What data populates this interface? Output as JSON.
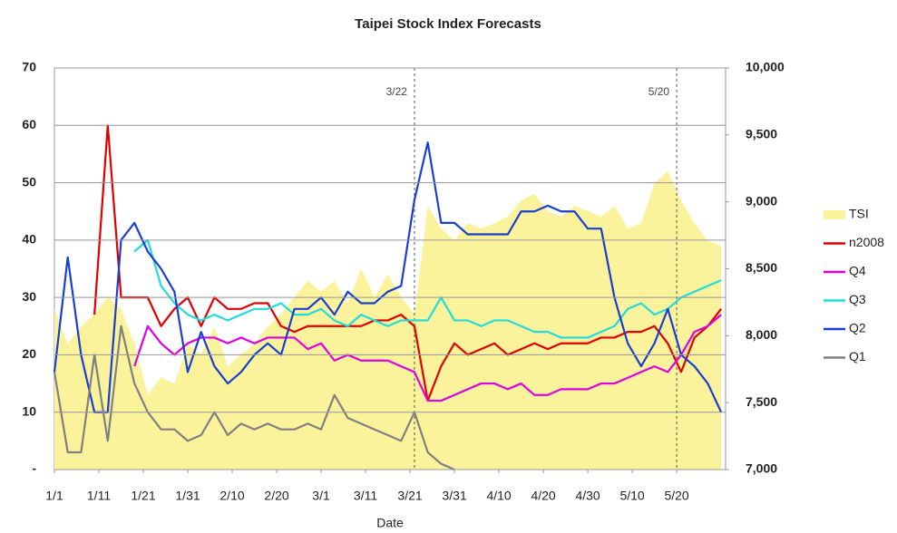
{
  "chart_data": {
    "type": "line",
    "title": "Taipei Stock Index Forecasts",
    "x_label": "Date",
    "x": [
      0,
      3,
      6,
      9,
      12,
      15,
      18,
      21,
      24,
      27,
      30,
      33,
      36,
      39,
      42,
      45,
      48,
      51,
      54,
      57,
      60,
      63,
      66,
      69,
      72,
      75,
      78,
      81,
      84,
      87,
      90,
      93,
      96,
      99,
      102,
      105,
      108,
      111,
      114,
      117,
      120,
      123,
      126,
      129,
      132,
      135,
      138,
      141,
      144,
      147,
      150
    ],
    "xlim": [
      0,
      151
    ],
    "xticks": [
      {
        "value": 0,
        "label": "1/1"
      },
      {
        "value": 10,
        "label": "1/11"
      },
      {
        "value": 20,
        "label": "1/21"
      },
      {
        "value": 30,
        "label": "1/31"
      },
      {
        "value": 40,
        "label": "2/10"
      },
      {
        "value": 50,
        "label": "2/20"
      },
      {
        "value": 60,
        "label": "3/1"
      },
      {
        "value": 70,
        "label": "3/11"
      },
      {
        "value": 80,
        "label": "3/21"
      },
      {
        "value": 90,
        "label": "3/31"
      },
      {
        "value": 100,
        "label": "4/10"
      },
      {
        "value": 110,
        "label": "4/20"
      },
      {
        "value": 120,
        "label": "4/30"
      },
      {
        "value": 130,
        "label": "5/10"
      },
      {
        "value": 140,
        "label": "5/20"
      }
    ],
    "ylim": [
      0,
      70
    ],
    "yticks": [
      {
        "value": 0,
        "label": "-"
      },
      10,
      20,
      30,
      40,
      50,
      60,
      70
    ],
    "y2lim": [
      7000,
      10000
    ],
    "y2ticks": [
      {
        "value": 7000,
        "label": "7,000"
      },
      {
        "value": 7500,
        "label": "7,500"
      },
      {
        "value": 8000,
        "label": "8,000"
      },
      {
        "value": 8500,
        "label": "8,500"
      },
      {
        "value": 9000,
        "label": "9,000"
      },
      {
        "value": 9500,
        "label": "9,500"
      },
      {
        "value": 10000,
        "label": "10,000"
      }
    ],
    "grid": true,
    "legend": "right",
    "annotations": [
      {
        "x": 81,
        "label": "3/22"
      },
      {
        "x": 140,
        "label": "5/20"
      }
    ],
    "series": [
      {
        "name": "TSI",
        "type": "area",
        "axis": "y2",
        "color": "#fbf39c",
        "values": [
          8200,
          7940,
          8070,
          8160,
          8290,
          8200,
          7940,
          7560,
          7690,
          7640,
          7940,
          7860,
          8070,
          7770,
          7860,
          7940,
          8070,
          8160,
          8290,
          8410,
          8330,
          8410,
          8240,
          8500,
          8290,
          8460,
          8290,
          8160,
          8970,
          8800,
          8710,
          8840,
          8800,
          8840,
          8890,
          9010,
          9060,
          8930,
          8890,
          8970,
          8930,
          8890,
          8970,
          8800,
          8840,
          9140,
          9230,
          9010,
          8840,
          8710,
          8670
        ]
      },
      {
        "name": "n2008",
        "color": "#e00000",
        "values": [
          null,
          null,
          null,
          27,
          60,
          30,
          30,
          30,
          25,
          28,
          30,
          25,
          30,
          28,
          28,
          29,
          29,
          25,
          24,
          25,
          25,
          25,
          25,
          25,
          26,
          26,
          27,
          25,
          12,
          18,
          22,
          20,
          21,
          22,
          20,
          21,
          22,
          21,
          22,
          22,
          22,
          23,
          23,
          24,
          24,
          25,
          22,
          17,
          23,
          25,
          28
        ]
      },
      {
        "name": "Q4",
        "color": "#e000e0",
        "values": [
          null,
          null,
          null,
          null,
          null,
          null,
          18,
          25,
          22,
          20,
          22,
          23,
          23,
          22,
          23,
          22,
          23,
          23,
          23,
          21,
          22,
          19,
          20,
          19,
          19,
          19,
          18,
          17,
          12,
          12,
          13,
          14,
          15,
          15,
          14,
          15,
          13,
          13,
          14,
          14,
          14,
          15,
          15,
          16,
          17,
          18,
          17,
          20,
          24,
          25,
          27
        ]
      },
      {
        "name": "Q3",
        "color": "#22dcdc",
        "values": [
          null,
          null,
          null,
          null,
          null,
          null,
          38,
          40,
          32,
          29,
          27,
          26,
          27,
          26,
          27,
          28,
          28,
          29,
          27,
          27,
          28,
          26,
          25,
          27,
          26,
          25,
          26,
          26,
          26,
          30,
          26,
          26,
          25,
          26,
          26,
          25,
          24,
          24,
          23,
          23,
          23,
          24,
          25,
          28,
          29,
          27,
          28,
          30,
          31,
          32,
          33
        ]
      },
      {
        "name": "Q2",
        "color": "#1a3fd0",
        "values": [
          17,
          37,
          20,
          10,
          10,
          40,
          43,
          38,
          35,
          31,
          17,
          24,
          18,
          15,
          17,
          20,
          22,
          20,
          28,
          28,
          30,
          27,
          31,
          29,
          29,
          31,
          32,
          47,
          57,
          43,
          43,
          41,
          41,
          41,
          41,
          45,
          45,
          46,
          45,
          45,
          42,
          42,
          30,
          22,
          18,
          22,
          28,
          20,
          18,
          15,
          10
        ]
      },
      {
        "name": "Q1",
        "color": "#808080",
        "values": [
          17,
          3,
          3,
          20,
          5,
          25,
          15,
          10,
          7,
          7,
          5,
          6,
          10,
          6,
          8,
          7,
          8,
          7,
          7,
          8,
          7,
          13,
          9,
          8,
          7,
          6,
          5,
          10,
          3,
          1,
          0,
          null,
          null,
          null,
          null,
          null,
          null,
          null,
          null,
          null,
          null,
          null,
          null,
          null,
          null,
          null,
          null,
          null,
          null,
          null,
          null
        ]
      }
    ]
  }
}
